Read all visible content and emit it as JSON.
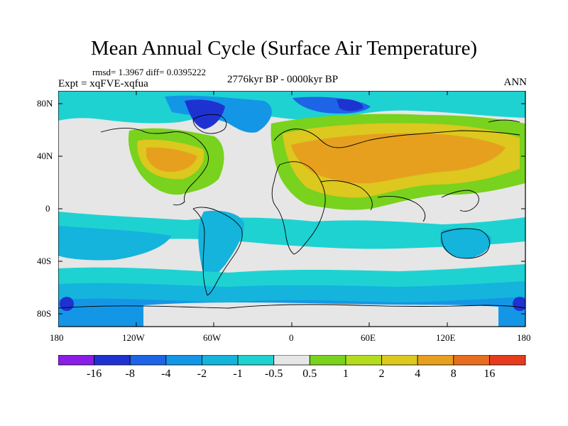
{
  "title": "Mean Annual Cycle (Surface Air Temperature)",
  "stats": "rmsd= 1.3967 diff= 0.0395222",
  "experiment": "Expt = xqFVE-xqfua",
  "period": "2776kyr BP - 0000kyr BP",
  "season": "ANN",
  "lat_ticks": [
    "80N",
    "40N",
    "0",
    "40S",
    "80S"
  ],
  "lon_ticks": [
    "180",
    "120W",
    "60W",
    "0",
    "60E",
    "120E",
    "180"
  ],
  "colorbar": {
    "labels": [
      "-16",
      "-8",
      "-4",
      "-2",
      "-1",
      "-0.5",
      "0.5",
      "1",
      "2",
      "4",
      "8",
      "16"
    ],
    "colors": [
      "#8a1ee6",
      "#1e32d2",
      "#1e64e6",
      "#1496e6",
      "#14b4dc",
      "#1ed2d2",
      "#e6e6e6",
      "#78d21e",
      "#b4dc1e",
      "#dcc81e",
      "#e6a01e",
      "#e66e1e",
      "#e63c1e"
    ]
  }
}
